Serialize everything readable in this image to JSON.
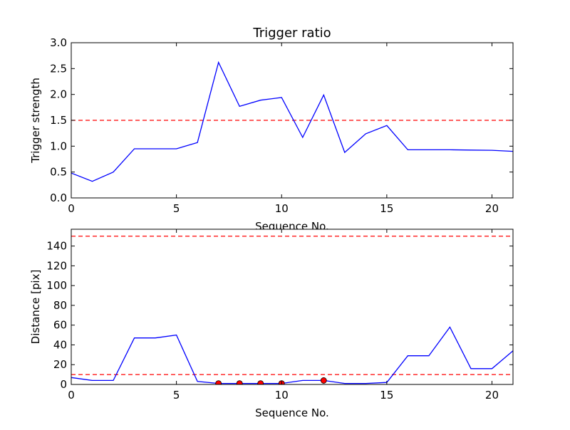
{
  "chart_data": [
    {
      "type": "line",
      "title": "Trigger ratio",
      "xlabel": "Sequence No.",
      "ylabel": "Trigger strength",
      "xlim": [
        0,
        21
      ],
      "ylim": [
        0,
        3.0
      ],
      "xticks": [
        0,
        5,
        10,
        15,
        20
      ],
      "yticks": [
        0,
        0.5,
        1.0,
        1.5,
        2.0,
        2.5,
        3.0
      ],
      "ytick_labels": [
        "0.0",
        "0.5",
        "1.0",
        "1.5",
        "2.0",
        "2.5",
        "3.0"
      ],
      "grid": false,
      "series": [
        {
          "color": "#0000ff",
          "style": "solid",
          "x": [
            0,
            1,
            2,
            3,
            4,
            5,
            6,
            7,
            8,
            9,
            10,
            11,
            12,
            13,
            14,
            15,
            16,
            17,
            18,
            19,
            20,
            21
          ],
          "y": [
            0.48,
            0.32,
            0.5,
            0.95,
            0.95,
            0.95,
            1.07,
            2.62,
            1.77,
            1.89,
            1.94,
            1.17,
            1.99,
            0.88,
            1.24,
            1.4,
            0.93,
            0.93,
            0.93,
            0.925,
            0.92,
            0.9
          ]
        }
      ],
      "hlines": [
        {
          "y": 1.5,
          "color": "#ff0000",
          "style": "dashed"
        }
      ]
    },
    {
      "type": "line",
      "title": "",
      "xlabel": "Sequence No.",
      "ylabel": "Distance [pix]",
      "xlim": [
        0,
        21
      ],
      "ylim": [
        0,
        157
      ],
      "xticks": [
        0,
        5,
        10,
        15,
        20
      ],
      "yticks": [
        0,
        20,
        40,
        60,
        80,
        100,
        120,
        140
      ],
      "ytick_labels": [
        "0",
        "20",
        "40",
        "60",
        "80",
        "100",
        "120",
        "140"
      ],
      "grid": false,
      "series": [
        {
          "color": "#0000ff",
          "style": "solid",
          "x": [
            0,
            1,
            2,
            3,
            4,
            5,
            6,
            7,
            8,
            9,
            10,
            11,
            12,
            13,
            14,
            15,
            16,
            17,
            18,
            19,
            20,
            21
          ],
          "y": [
            7,
            4,
            4,
            47,
            47,
            50,
            3,
            1,
            1,
            1,
            1,
            4,
            4,
            1,
            1,
            2,
            29,
            29,
            58,
            16,
            16,
            34
          ]
        }
      ],
      "markers": {
        "color": "#ff0000",
        "x": [
          7,
          8,
          9,
          10,
          12
        ],
        "y": [
          1,
          1,
          1,
          1,
          4
        ]
      },
      "hlines": [
        {
          "y": 150,
          "color": "#ff0000",
          "style": "dashed"
        },
        {
          "y": 10,
          "color": "#ff0000",
          "style": "dashed"
        }
      ]
    }
  ]
}
